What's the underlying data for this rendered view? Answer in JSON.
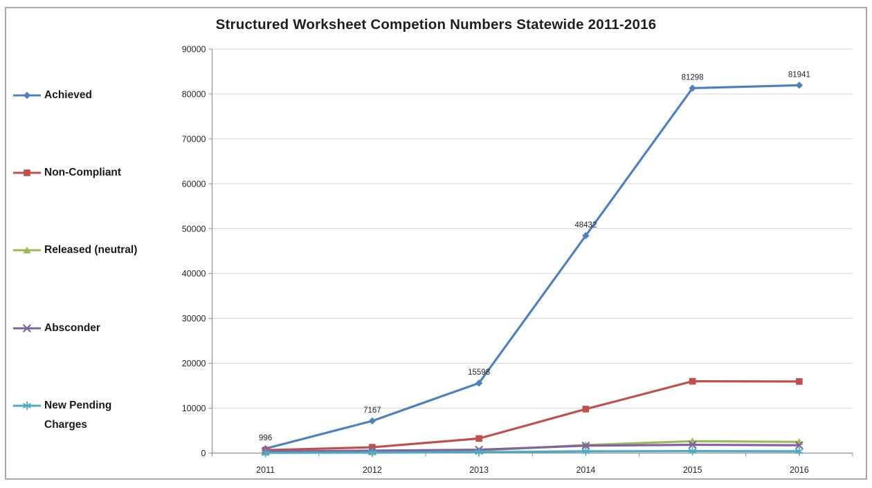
{
  "title": "Structured Worksheet Competion Numbers Statewide 2011-2016",
  "chart_data": {
    "type": "line",
    "categories": [
      "2011",
      "2012",
      "2013",
      "2014",
      "2015",
      "2016"
    ],
    "series": [
      {
        "name": "Achieved",
        "color": "#4F81BD",
        "marker": "diamond",
        "values": [
          996,
          7167,
          15598,
          48432,
          81298,
          81941
        ],
        "show_labels": true,
        "data_labels": [
          "996",
          "7167",
          "15598",
          "48432",
          "81298",
          "81941"
        ]
      },
      {
        "name": "Non-Compliant",
        "color": "#C0504D",
        "marker": "square",
        "values": [
          650,
          1300,
          3250,
          9800,
          16000,
          15950
        ],
        "show_labels": false
      },
      {
        "name": "Released (neutral)",
        "color": "#9BBB59",
        "marker": "triangle",
        "values": [
          150,
          250,
          550,
          1800,
          2650,
          2500
        ],
        "show_labels": false
      },
      {
        "name": "Absconder",
        "color": "#8064A2",
        "marker": "x",
        "values": [
          350,
          550,
          750,
          1650,
          1850,
          1750
        ],
        "show_labels": false
      },
      {
        "name": "New Pending Charges",
        "color": "#4BACC6",
        "marker": "star",
        "values": [
          50,
          100,
          200,
          400,
          450,
          400
        ],
        "show_labels": false
      }
    ],
    "xlabel": "",
    "ylabel": "",
    "ylim": [
      0,
      90000
    ],
    "ytick_step": 10000,
    "yticks": [
      "0",
      "10000",
      "20000",
      "30000",
      "40000",
      "50000",
      "60000",
      "70000",
      "80000",
      "90000"
    ],
    "grid": "horizontal-only",
    "legend_position": "left"
  }
}
